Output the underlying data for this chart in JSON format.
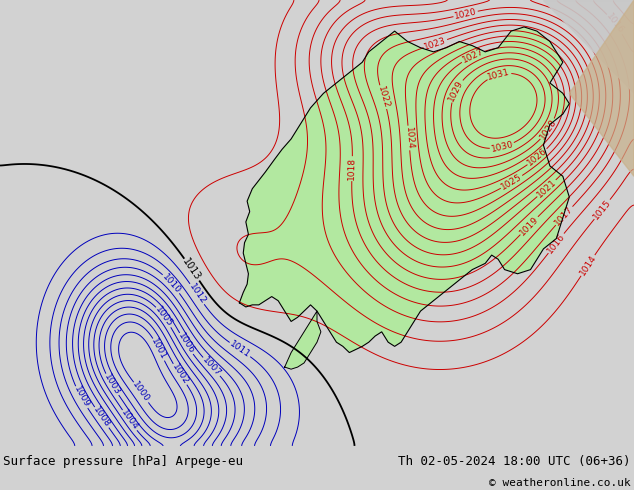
{
  "title_left": "Surface pressure [hPa] Arpege-eu",
  "title_right": "Th 02-05-2024 18:00 UTC (06+36)",
  "copyright": "© weatheronline.co.uk",
  "bg_color": "#d2d2d2",
  "green_color": "#b2e8a0",
  "figsize": [
    6.34,
    4.9
  ],
  "dpi": 100,
  "font_size_title": 9,
  "font_size_copyright": 8,
  "bottom_bar_color": "#e0e0e0",
  "contour_red_color": "#cc0000",
  "contour_blue_color": "#0000bb",
  "contour_black_color": "#000000",
  "contour_lw": 0.7,
  "label_fontsize": 6.5
}
